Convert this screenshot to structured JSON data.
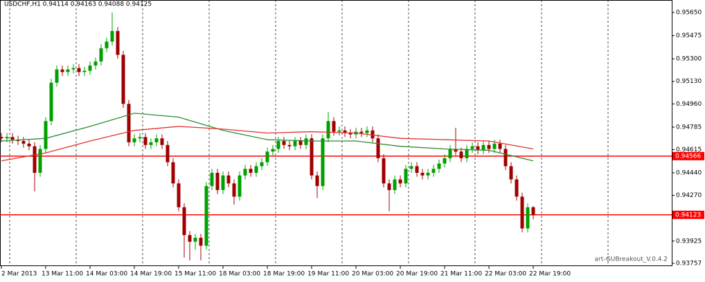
{
  "chart_data": {
    "type": "candlestick",
    "title": "USDCHF,H1  0.94114 0.94163 0.94088 0.94125",
    "annotation": "art-GUBreakout_V.0.4.2",
    "categories": [
      "2 Mar 2013",
      null,
      null,
      null,
      null,
      null,
      null,
      null,
      "13 Mar 11:00",
      null,
      null,
      null,
      null,
      null,
      null,
      null,
      "14 Mar 03:00",
      null,
      null,
      null,
      null,
      null,
      null,
      null,
      "14 Mar 19:00",
      null,
      null,
      null,
      null,
      null,
      null,
      null,
      "15 Mar 11:00",
      null,
      null,
      null,
      null,
      null,
      null,
      null,
      "18 Mar 03:00",
      null,
      null,
      null,
      null,
      null,
      null,
      null,
      "18 Mar 19:00",
      null,
      null,
      null,
      null,
      null,
      null,
      null,
      "19 Mar 11:00",
      null,
      null,
      null,
      null,
      null,
      null,
      null,
      "20 Mar 03:00",
      null,
      null,
      null,
      null,
      null,
      null,
      null,
      "20 Mar 19:00",
      null,
      null,
      null,
      null,
      null,
      null,
      null,
      "21 Mar 11:00",
      null,
      null,
      null,
      null,
      null,
      null,
      null,
      "22 Mar 03:00",
      null,
      null,
      null,
      null,
      null,
      null,
      null,
      "22 Mar 19:00"
    ],
    "open": [
      0.9471,
      0.947,
      0.9471,
      0.9469,
      0.9468,
      0.9466,
      0.9464,
      0.9444,
      0.9462,
      0.9483,
      0.9512,
      0.9522,
      0.952,
      0.9522,
      0.9523,
      0.952,
      0.9521,
      0.9525,
      0.9528,
      0.9538,
      0.9543,
      0.9551,
      0.9533,
      0.9496,
      0.9467,
      0.947,
      0.9471,
      0.9465,
      0.9467,
      0.947,
      0.9465,
      0.9452,
      0.9436,
      0.9418,
      0.9397,
      0.9392,
      0.9395,
      0.9389,
      0.9434,
      0.9444,
      0.9431,
      0.9442,
      0.9436,
      0.9426,
      0.9442,
      0.9447,
      0.9444,
      0.9449,
      0.9452,
      0.946,
      0.9462,
      0.9468,
      0.9465,
      0.9464,
      0.9468,
      0.9465,
      0.947,
      0.9442,
      0.9434,
      0.947,
      0.9483,
      0.9475,
      0.9476,
      0.9474,
      0.9473,
      0.9475,
      0.9474,
      0.9476,
      0.947,
      0.9455,
      0.9436,
      0.9431,
      0.9439,
      0.9436,
      0.9447,
      0.9449,
      0.9444,
      0.9442,
      0.9444,
      0.9447,
      0.9451,
      0.9455,
      0.9462,
      0.946,
      0.9455,
      0.9462,
      0.9464,
      0.9461,
      0.9465,
      0.9462,
      0.9466,
      0.9462,
      0.9449,
      0.9439,
      0.9426,
      0.9402,
      0.9418
    ],
    "high": [
      0.9474,
      0.9474,
      0.9474,
      0.9472,
      0.9471,
      0.9469,
      0.9467,
      0.9465,
      0.9486,
      0.9515,
      0.9525,
      0.9525,
      0.9525,
      0.9526,
      0.9526,
      0.9524,
      0.9528,
      0.9531,
      0.9541,
      0.9546,
      0.9565,
      0.9554,
      0.9536,
      0.9499,
      0.9473,
      0.9474,
      0.9474,
      0.947,
      0.9473,
      0.9473,
      0.9468,
      0.9455,
      0.9439,
      0.9421,
      0.94,
      0.9398,
      0.9398,
      0.9437,
      0.9447,
      0.9447,
      0.9445,
      0.9445,
      0.9439,
      0.9445,
      0.945,
      0.945,
      0.9452,
      0.9455,
      0.9463,
      0.9465,
      0.9471,
      0.9471,
      0.9468,
      0.9471,
      0.9471,
      0.9473,
      0.9473,
      0.9445,
      0.9473,
      0.949,
      0.9486,
      0.9479,
      0.9479,
      0.9477,
      0.9478,
      0.9478,
      0.9479,
      0.9479,
      0.9473,
      0.9458,
      0.9439,
      0.9442,
      0.9442,
      0.945,
      0.9452,
      0.9452,
      0.9447,
      0.9447,
      0.945,
      0.9454,
      0.9458,
      0.9465,
      0.9478,
      0.9463,
      0.9465,
      0.9467,
      0.9467,
      0.9468,
      0.9468,
      0.9469,
      0.9469,
      0.9465,
      0.9452,
      0.9442,
      0.9429,
      0.9421,
      0.9419
    ],
    "low": [
      0.9467,
      0.9467,
      0.9466,
      0.9465,
      0.9463,
      0.9461,
      0.943,
      0.9441,
      0.9459,
      0.948,
      0.9509,
      0.9517,
      0.9517,
      0.9519,
      0.9517,
      0.9517,
      0.9518,
      0.9522,
      0.9525,
      0.9535,
      0.954,
      0.953,
      0.9493,
      0.9464,
      0.9464,
      0.9467,
      0.9462,
      0.9462,
      0.9464,
      0.9462,
      0.9449,
      0.9433,
      0.9415,
      0.938,
      0.9378,
      0.9386,
      0.9378,
      0.9386,
      0.9431,
      0.9428,
      0.9428,
      0.9433,
      0.942,
      0.9423,
      0.9439,
      0.9441,
      0.9441,
      0.9446,
      0.9449,
      0.9457,
      0.9459,
      0.9462,
      0.9461,
      0.9461,
      0.9462,
      0.9462,
      0.9439,
      0.9425,
      0.9431,
      0.9467,
      0.9472,
      0.9472,
      0.9471,
      0.947,
      0.947,
      0.9471,
      0.9471,
      0.9467,
      0.9452,
      0.9433,
      0.9415,
      0.9428,
      0.9433,
      0.9433,
      0.9444,
      0.9441,
      0.9439,
      0.9439,
      0.9441,
      0.9444,
      0.9448,
      0.9452,
      0.9457,
      0.9452,
      0.9452,
      0.9459,
      0.9458,
      0.9458,
      0.9459,
      0.9459,
      0.9459,
      0.9446,
      0.9436,
      0.9423,
      0.9399,
      0.9399,
      0.9409
    ],
    "close": [
      0.947,
      0.9471,
      0.9469,
      0.9468,
      0.9466,
      0.9464,
      0.9444,
      0.9462,
      0.9483,
      0.9512,
      0.9522,
      0.952,
      0.9522,
      0.9523,
      0.952,
      0.9521,
      0.9525,
      0.9528,
      0.9538,
      0.9543,
      0.9551,
      0.9533,
      0.9496,
      0.9467,
      0.947,
      0.9471,
      0.9465,
      0.9467,
      0.947,
      0.9465,
      0.9452,
      0.9436,
      0.9418,
      0.9397,
      0.9392,
      0.9395,
      0.9389,
      0.9434,
      0.9444,
      0.9431,
      0.9442,
      0.9436,
      0.9426,
      0.9442,
      0.9447,
      0.9444,
      0.9449,
      0.9452,
      0.946,
      0.9462,
      0.9468,
      0.9465,
      0.9464,
      0.9468,
      0.9465,
      0.947,
      0.9442,
      0.9434,
      0.947,
      0.9483,
      0.9475,
      0.9476,
      0.9474,
      0.9473,
      0.9475,
      0.9474,
      0.9476,
      0.947,
      0.9455,
      0.9436,
      0.9431,
      0.9439,
      0.9436,
      0.9447,
      0.9449,
      0.9444,
      0.9442,
      0.9444,
      0.9447,
      0.9451,
      0.9455,
      0.9462,
      0.946,
      0.9455,
      0.9462,
      0.9464,
      0.9461,
      0.9465,
      0.9462,
      0.9466,
      0.9462,
      0.9449,
      0.9439,
      0.9426,
      0.9402,
      0.9418,
      0.9412
    ],
    "up_color": "#00a000",
    "down_color": "#a00000",
    "lines": [
      {
        "color": "#2e8b2e",
        "x": [
          0,
          8,
          16,
          24,
          32,
          40,
          48,
          56,
          64,
          72,
          80,
          88,
          96
        ],
        "values": [
          0.9468,
          0.947,
          0.9479,
          0.9489,
          0.9486,
          0.9476,
          0.9469,
          0.9468,
          0.9468,
          0.9464,
          0.9462,
          0.9461,
          0.9453
        ]
      },
      {
        "color": "#e03030",
        "x": [
          0,
          8,
          16,
          24,
          32,
          40,
          48,
          56,
          64,
          72,
          80,
          88,
          96
        ],
        "values": [
          0.9453,
          0.9459,
          0.9468,
          0.9476,
          0.9479,
          0.9477,
          0.9474,
          0.9475,
          0.9474,
          0.947,
          0.9469,
          0.9468,
          0.9462
        ]
      }
    ],
    "levels": [
      0.94566,
      0.94123
    ],
    "level_color": "#ff0000",
    "ylim": [
      0.93736,
      0.95744
    ],
    "yticks": [
      {
        "value": 0.9565,
        "label": "0.95650"
      },
      0.95475,
      {
        "value": 0.953,
        "label": "0.95300"
      },
      {
        "value": 0.9513,
        "label": "0.95130"
      },
      {
        "value": 0.9496,
        "label": "0.94960"
      },
      0.94785,
      0.94615,
      {
        "value": 0.9444,
        "label": "0.94440"
      },
      {
        "value": 0.9427,
        "label": "0.94270"
      },
      0.93925,
      0.93757
    ]
  }
}
